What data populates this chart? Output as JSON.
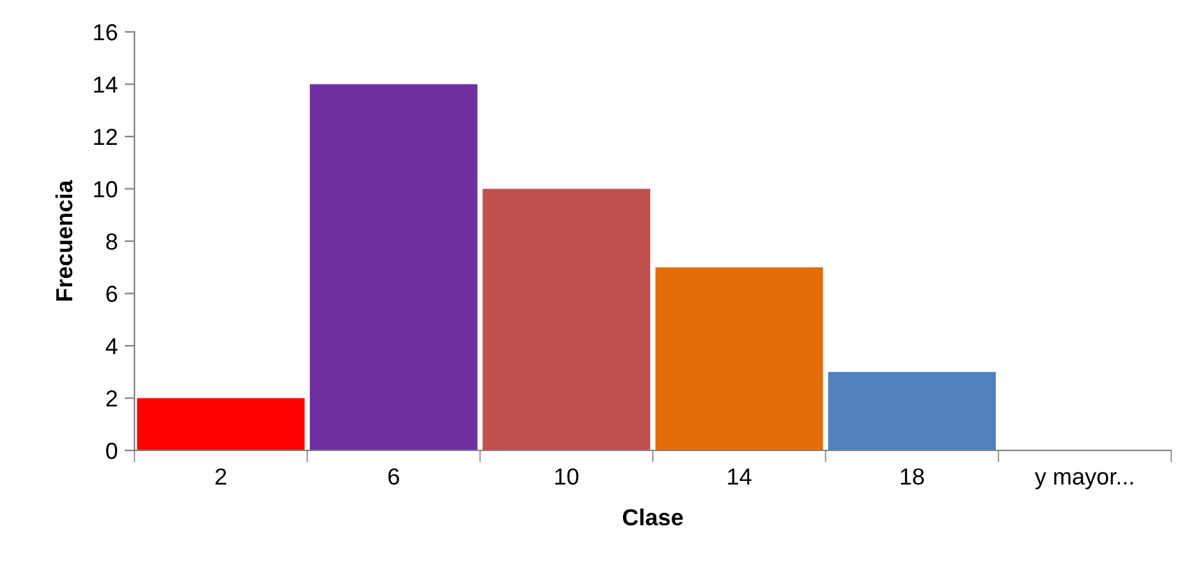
{
  "chart_data": {
    "type": "bar",
    "xlabel": "Clase",
    "ylabel": "Frecuencia",
    "categories": [
      "2",
      "6",
      "10",
      "14",
      "18",
      "y mayor..."
    ],
    "values": [
      2,
      14,
      10,
      7,
      3,
      0
    ],
    "colors": [
      "#ff0000",
      "#7030a0",
      "#c0504d",
      "#e46c0a",
      "#4f81bd",
      "#9bbb59"
    ],
    "ylim": [
      0,
      16
    ],
    "yticks": [
      0,
      2,
      4,
      6,
      8,
      10,
      12,
      14,
      16
    ],
    "grid": false,
    "legend": false
  }
}
